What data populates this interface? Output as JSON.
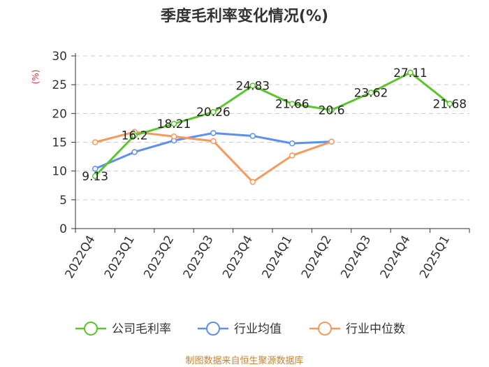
{
  "chart_data": {
    "type": "line",
    "title": "季度毛利率变化情况(%)",
    "ylabel": "(%)",
    "xlabel": "",
    "ylim": [
      0,
      30
    ],
    "yticks": [
      0,
      5,
      10,
      15,
      20,
      25,
      30
    ],
    "grid": true,
    "legend_position": "bottom",
    "categories": [
      "2022Q4",
      "2023Q1",
      "2023Q2",
      "2023Q3",
      "2023Q4",
      "2024Q1",
      "2024Q2",
      "2024Q3",
      "2024Q4",
      "2025Q1"
    ],
    "series": [
      {
        "name": "公司毛利率",
        "color": "#5cc52e",
        "values": [
          9.13,
          16.2,
          18.21,
          20.26,
          24.83,
          21.66,
          20.6,
          23.62,
          27.11,
          21.68
        ],
        "labels": [
          "9.13",
          "16.2",
          "18.21",
          "20.26",
          "24.83",
          "21.66",
          "20.6",
          "23.62",
          "27.11",
          "21.68"
        ]
      },
      {
        "name": "行业均值",
        "color": "#5b8ff0",
        "values": [
          10.4,
          13.3,
          15.3,
          16.6,
          16.1,
          14.8,
          15.1,
          null,
          null,
          null
        ]
      },
      {
        "name": "行业中位数",
        "color": "#f59a5c",
        "values": [
          15.0,
          16.8,
          16.0,
          15.2,
          8.1,
          12.7,
          15.1,
          null,
          null,
          null
        ]
      }
    ]
  },
  "footer": "制图数据来自恒生聚源数据库"
}
